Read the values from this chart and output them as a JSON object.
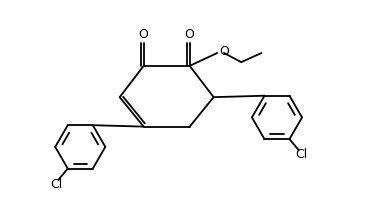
{
  "bg_color": "#ffffff",
  "line_color": "#000000",
  "lw": 1.3,
  "figsize": [
    3.72,
    1.98
  ],
  "dpi": 100,
  "xlim": [
    0,
    10
  ],
  "ylim": [
    0,
    5.3
  ]
}
